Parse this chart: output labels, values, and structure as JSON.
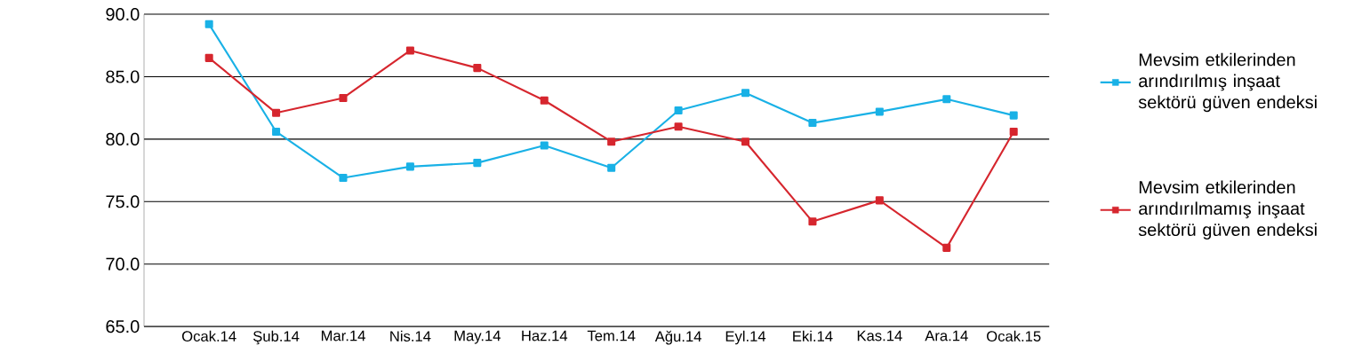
{
  "chart_data": {
    "type": "line",
    "categories": [
      "Ocak.14",
      "Şub.14",
      "Mar.14",
      "Nis.14",
      "May.14",
      "Haz.14",
      "Tem.14",
      "Ağu.14",
      "Eyl.14",
      "Eki.14",
      "Kas.14",
      "Ara.14",
      "Ocak.15"
    ],
    "series": [
      {
        "name": "Mevsim etkilerinden arındırılmış inşaat sektörü güven endeksi",
        "color": "#19b1e6",
        "values": [
          89.2,
          80.6,
          76.9,
          77.8,
          78.1,
          79.5,
          77.7,
          82.3,
          83.7,
          81.3,
          82.2,
          83.2,
          81.9
        ]
      },
      {
        "name": "Mevsim etkilerinden arındırılmamış inşaat sektörü güven endeksi",
        "color": "#d6262e",
        "values": [
          86.5,
          82.1,
          83.3,
          87.1,
          85.7,
          83.1,
          79.8,
          81.0,
          79.8,
          73.4,
          75.1,
          71.3,
          80.6
        ]
      }
    ],
    "ylim": [
      65,
      90
    ],
    "yticks": [
      {
        "value": 65,
        "label": "65.0"
      },
      {
        "value": 70,
        "label": "70.0"
      },
      {
        "value": 75,
        "label": "75.0"
      },
      {
        "value": 80,
        "label": "80.0"
      },
      {
        "value": 85,
        "label": "85.0"
      },
      {
        "value": 90,
        "label": "90.0"
      }
    ],
    "grid": "y",
    "legend": "right",
    "marker": "square",
    "line_style": "solid"
  }
}
